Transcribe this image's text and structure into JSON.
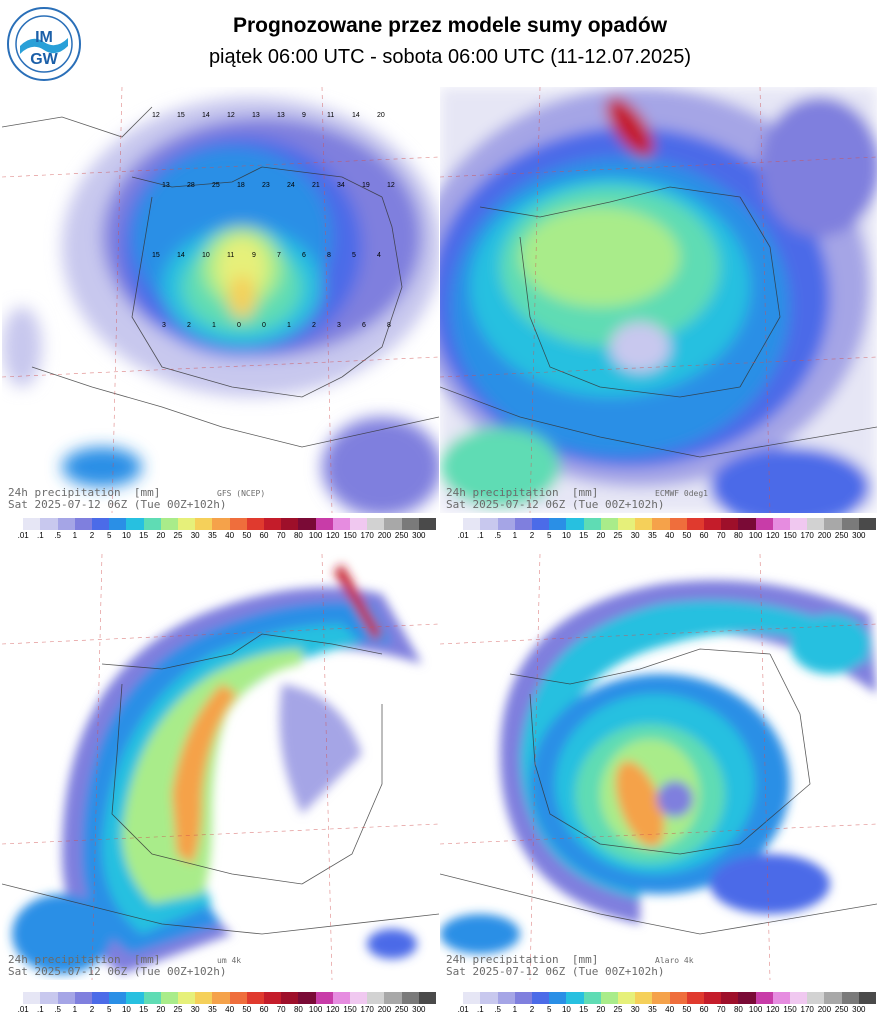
{
  "header": {
    "title": "Prognozowane przez modele sumy opadów",
    "subtitle": "piątek 06:00 UTC - sobota 06:00 UTC (11-12.07.2025)",
    "logo_text_top": "IM",
    "logo_text_bottom": "GW"
  },
  "panels": [
    {
      "id": "gfs",
      "line1": "24h precipitation  [mm]",
      "model": "GFS (NCEP)",
      "line2": "Sat 2025-07-12 06Z (Tue 00Z+102h)"
    },
    {
      "id": "ecmwf",
      "line1": "24h precipitation  [mm]",
      "model": "ECMWF 0deg1",
      "line2": "Sat 2025-07-12 06Z (Tue 00Z+102h)"
    },
    {
      "id": "um",
      "line1": "24h precipitation  [mm]",
      "model": "um 4k",
      "line2": "Sat 2025-07-12 06Z (Tue 00Z+102h)"
    },
    {
      "id": "alaro",
      "line1": "24h precipitation  [mm]",
      "model": "Alaro 4k",
      "line2": "Sat 2025-07-12 06Z (Tue 00Z+102h)"
    }
  ],
  "colorbar": {
    "ticks": [
      ".01",
      ".1",
      ".5",
      "1",
      "2",
      "5",
      "10",
      "15",
      "20",
      "25",
      "30",
      "35",
      "40",
      "50",
      "60",
      "70",
      "80",
      "100",
      "120",
      "150",
      "170",
      "200",
      "250",
      "300"
    ],
    "colors": [
      "#ffffff",
      "#e6e6f5",
      "#c8c8ee",
      "#a5a5e6",
      "#7f7fde",
      "#4b6be8",
      "#2a8fe6",
      "#27c0e0",
      "#5fdcb4",
      "#a9ec8a",
      "#e6f07a",
      "#f5d05a",
      "#f5a24a",
      "#ef6e3c",
      "#e03a2e",
      "#c41c2a",
      "#9e0f2a",
      "#7a0a36",
      "#c83ca8",
      "#e68ce0",
      "#f0c8f0",
      "#d2d2d2",
      "#a8a8a8",
      "#7a7a7a",
      "#4a4a4a"
    ]
  },
  "gfs_values": [
    {
      "v": "12"
    },
    {
      "v": "15"
    },
    {
      "v": "14"
    },
    {
      "v": "12"
    },
    {
      "v": "13"
    },
    {
      "v": "13"
    },
    {
      "v": "9"
    },
    {
      "v": "11"
    },
    {
      "v": "14"
    },
    {
      "v": "20"
    },
    {
      "v": "13"
    },
    {
      "v": "28"
    },
    {
      "v": "25"
    },
    {
      "v": "18"
    },
    {
      "v": "23"
    },
    {
      "v": "24"
    },
    {
      "v": "21"
    },
    {
      "v": "34"
    },
    {
      "v": "19"
    },
    {
      "v": "12"
    },
    {
      "v": "15"
    },
    {
      "v": "14"
    },
    {
      "v": "10"
    },
    {
      "v": "11"
    },
    {
      "v": "9"
    },
    {
      "v": "7"
    },
    {
      "v": "6"
    },
    {
      "v": "8"
    },
    {
      "v": "5"
    },
    {
      "v": "4"
    },
    {
      "v": "3"
    },
    {
      "v": "2"
    },
    {
      "v": "1"
    },
    {
      "v": "0"
    },
    {
      "v": "0"
    },
    {
      "v": "1"
    },
    {
      "v": "2"
    },
    {
      "v": "3"
    },
    {
      "v": "6"
    },
    {
      "v": "8"
    }
  ]
}
